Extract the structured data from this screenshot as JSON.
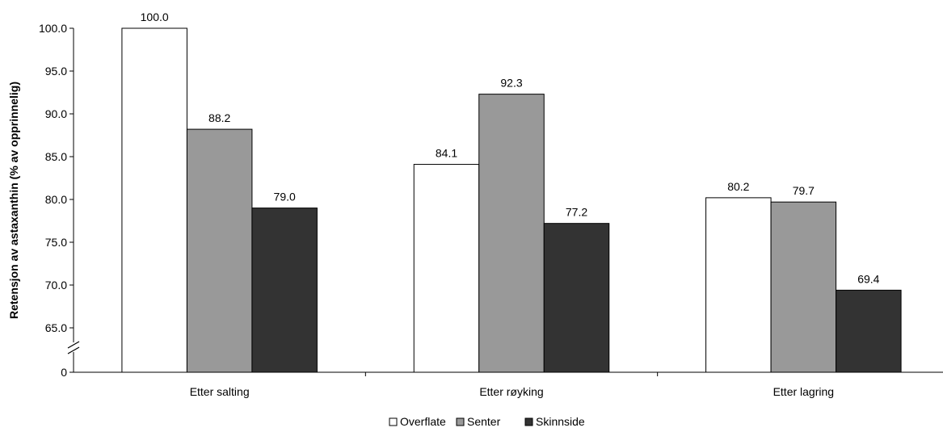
{
  "chart_data": {
    "type": "bar",
    "title": "",
    "xlabel": "",
    "ylabel": "Retensjon av astaxanthin (% av opprinnelig)",
    "categories": [
      "Etter salting",
      "Etter røyking",
      "Etter lagring"
    ],
    "series": [
      {
        "name": "Overflate",
        "values": [
          100.0,
          84.1,
          80.2
        ],
        "color": "#ffffff"
      },
      {
        "name": "Senter",
        "values": [
          88.2,
          92.3,
          79.7
        ],
        "color": "#999999"
      },
      {
        "name": "Skinnside",
        "values": [
          79.0,
          77.2,
          69.4
        ],
        "color": "#333333"
      }
    ],
    "data_labels": [
      [
        "100.0",
        "84.1",
        "80.2"
      ],
      [
        "88.2",
        "92.3",
        "79.7"
      ],
      [
        "79.0",
        "77.2",
        "69.4"
      ]
    ],
    "ylim": [
      65.0,
      100.0
    ],
    "axis_break": true,
    "yticks": [
      65.0,
      70.0,
      75.0,
      80.0,
      85.0,
      90.0,
      95.0,
      100.0
    ],
    "ytick_labels": [
      "65.0",
      "70.0",
      "75.0",
      "80.0",
      "85.0",
      "90.0",
      "95.0",
      "100.0"
    ],
    "ybaseline_label": "0",
    "grid": false,
    "legend_position": "bottom"
  }
}
